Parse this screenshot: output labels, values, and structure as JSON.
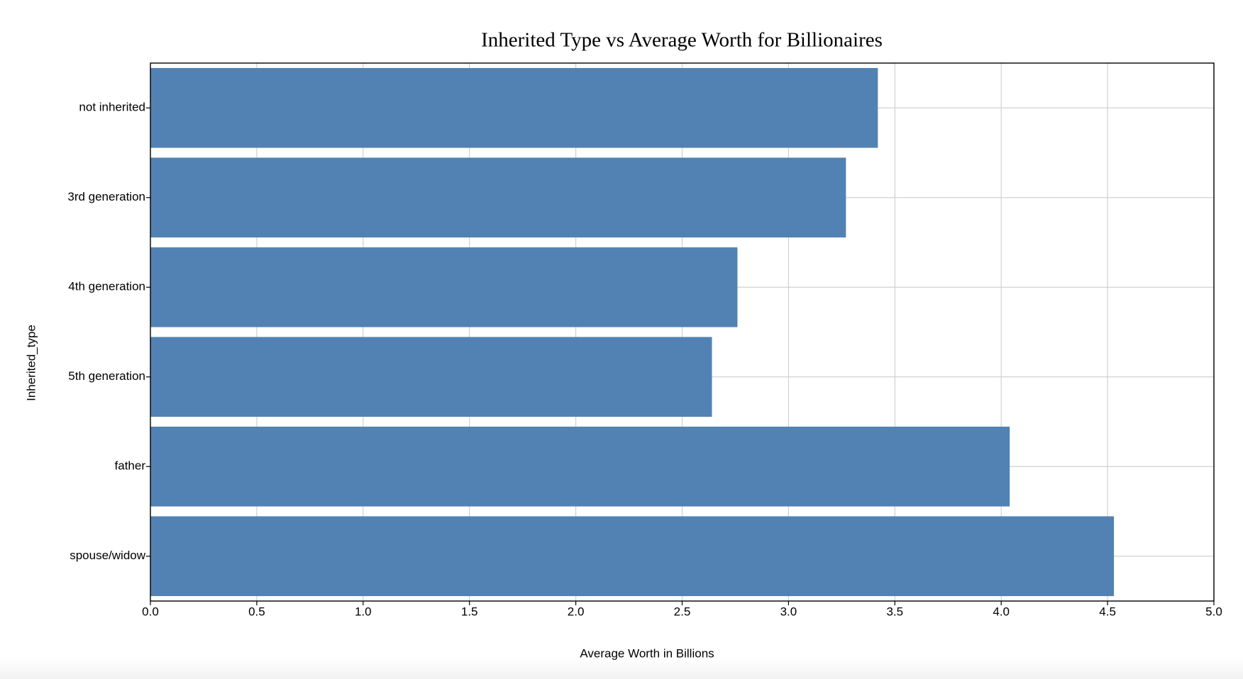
{
  "chart_data": {
    "type": "bar",
    "orientation": "horizontal",
    "title": "Inherited Type vs Average Worth for Billionaires",
    "x_label": "Average Worth in Billions",
    "y_label": "Inherited_type",
    "categories": [
      "not inherited",
      "3rd generation",
      "4th generation",
      "5th generation",
      "father",
      "spouse/widow"
    ],
    "values": [
      3.42,
      3.27,
      2.76,
      2.64,
      4.04,
      4.53
    ],
    "color": "#5182b3",
    "xlim": [
      0,
      5
    ],
    "xticks": [
      {
        "value": 0,
        "label": "0.0"
      },
      0.5,
      {
        "value": 1,
        "label": "1.0"
      },
      1.5,
      {
        "value": 2,
        "label": "2.0"
      },
      2.5,
      {
        "value": 3,
        "label": "3.0"
      },
      3.5,
      {
        "value": 4,
        "label": "4.0"
      },
      4.5,
      {
        "value": 5,
        "label": "5.0"
      }
    ],
    "grid": true
  }
}
